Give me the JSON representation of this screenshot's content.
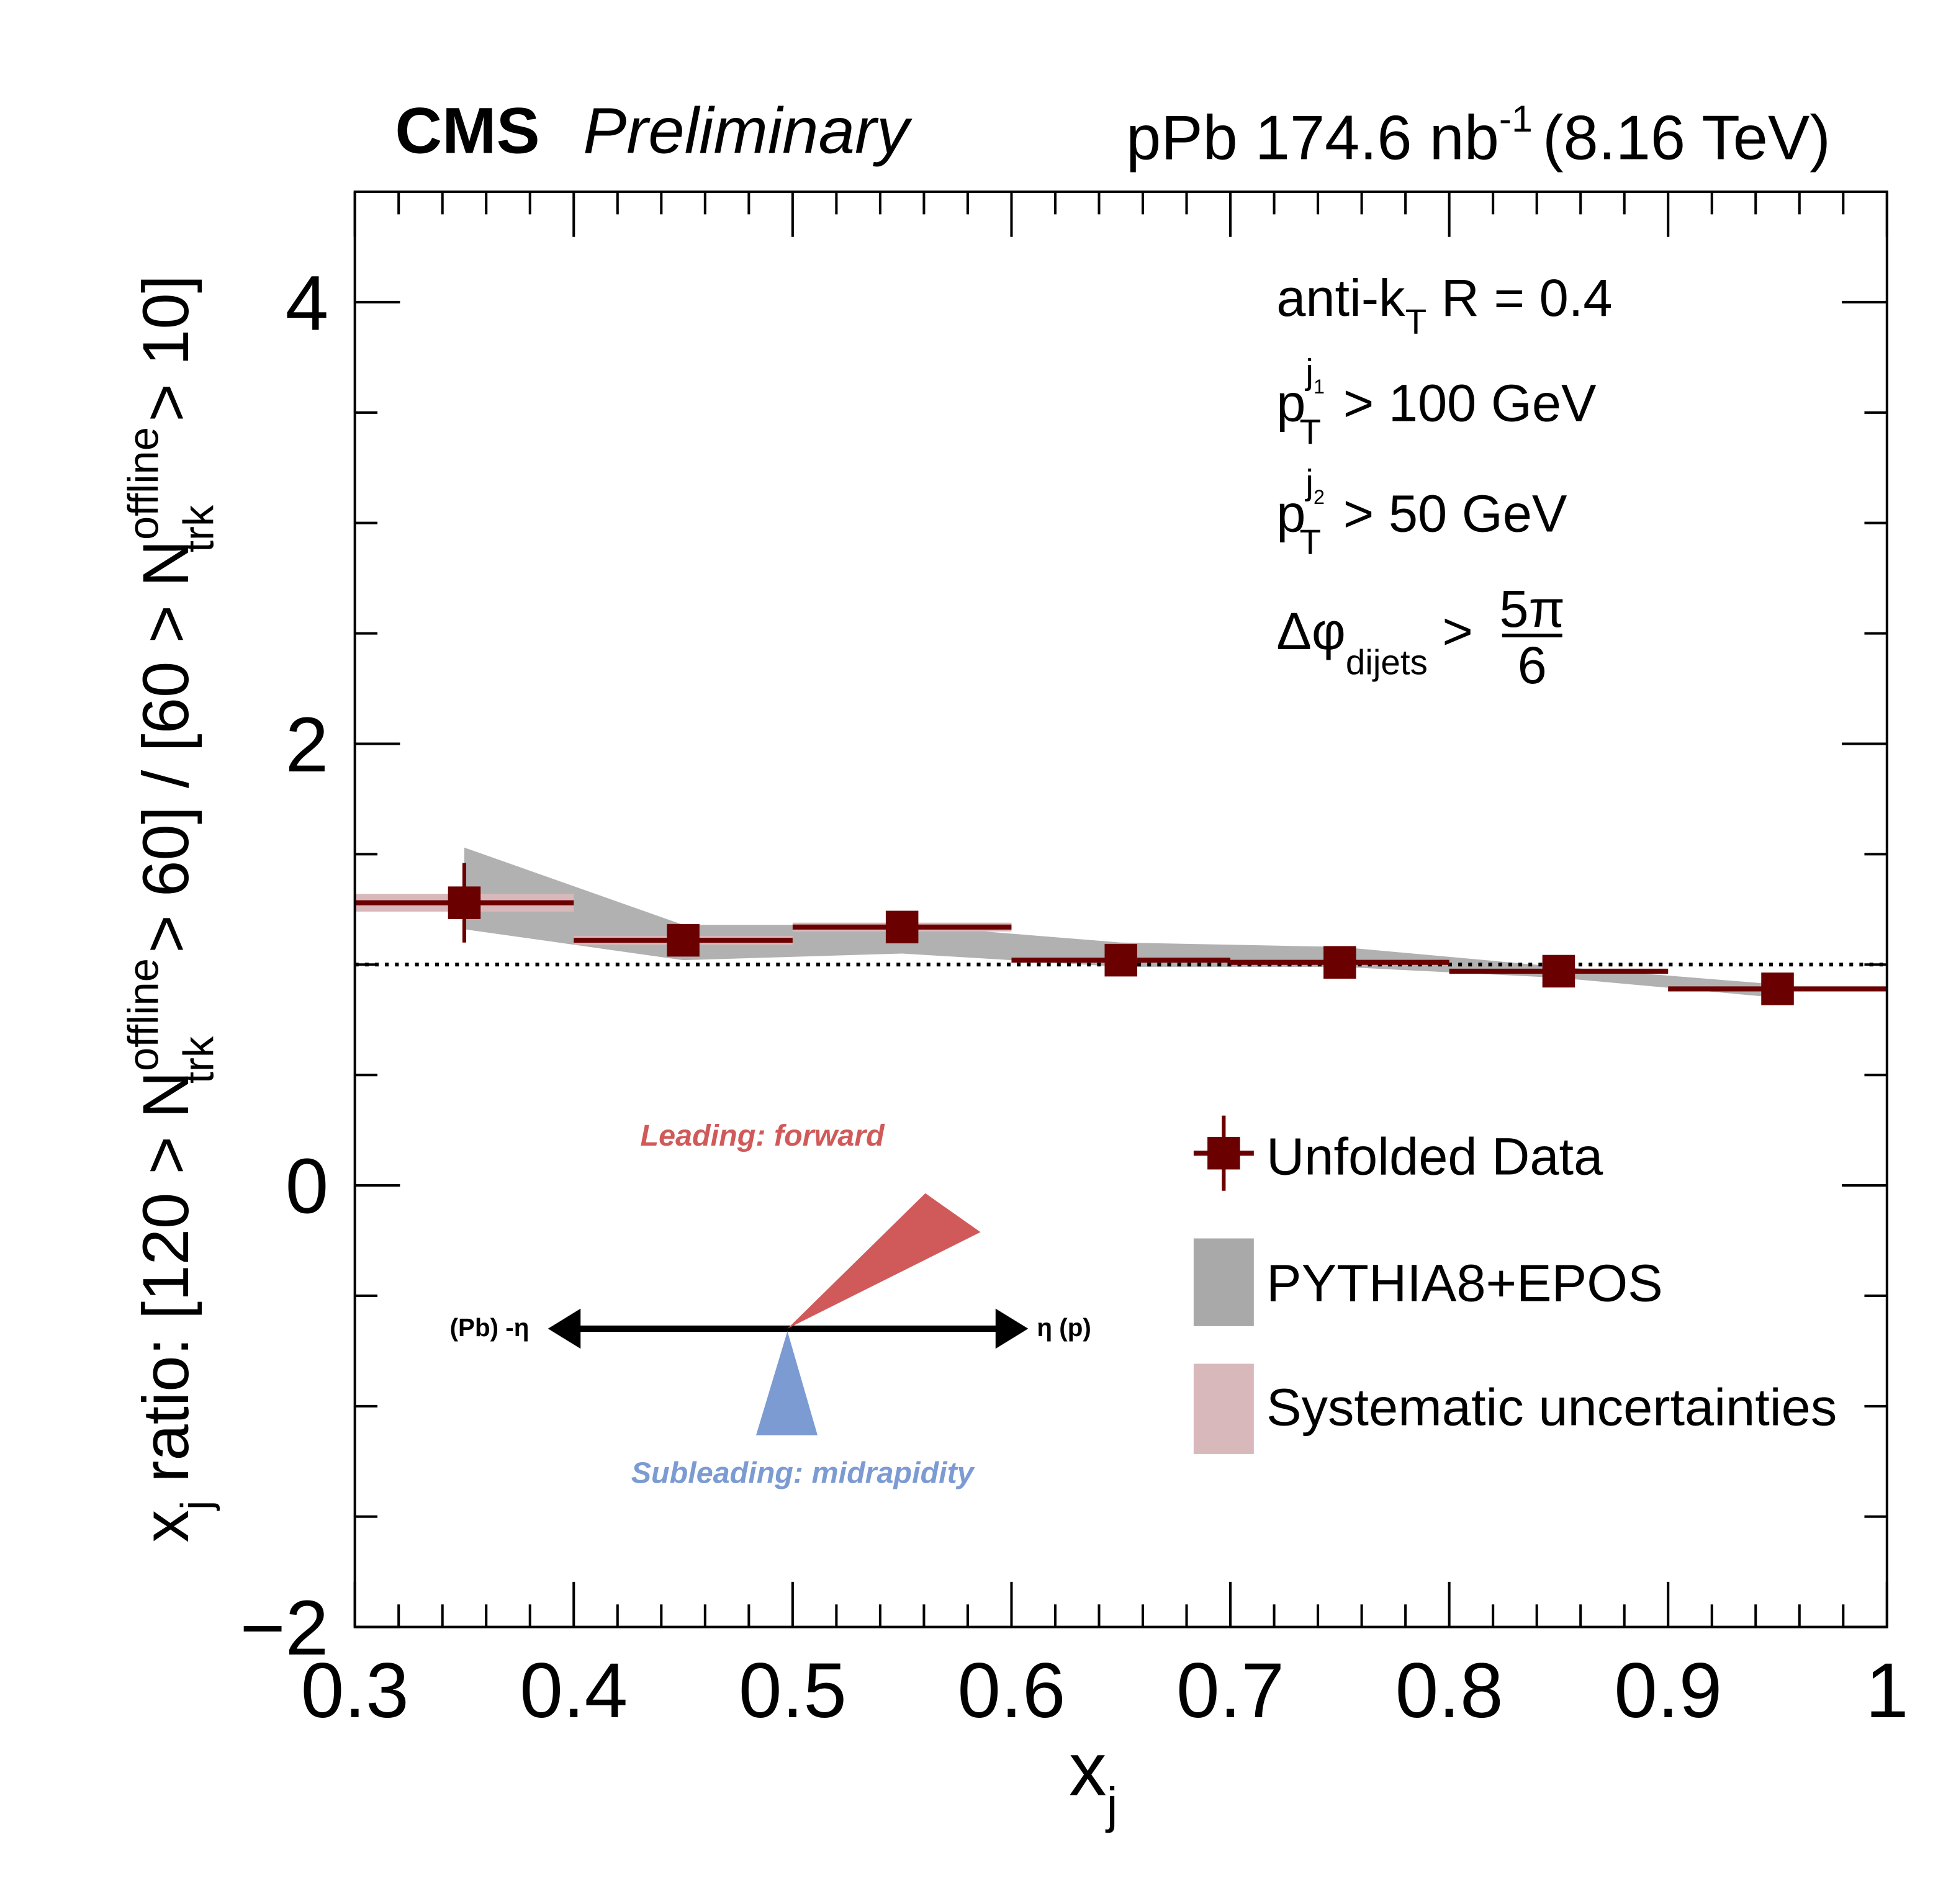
{
  "chart_data": {
    "type": "errorbar",
    "header": {
      "experiment": "CMS",
      "status": "Preliminary",
      "lumi": [
        "pPb 174.6 nb",
        "-1",
        "(8.16 TeV)"
      ]
    },
    "xlabel": [
      "x",
      "j"
    ],
    "ylabel": [
      "x",
      "j",
      " ratio: [120 > N",
      "offline",
      "trk",
      " > 60] / [60 > N",
      "offline",
      "trk",
      " > 10]"
    ],
    "annotations": {
      "algo": [
        "anti-k",
        "T",
        " R = 0.4"
      ],
      "lead": [
        "p",
        "j",
        "1",
        "T",
        " > 100 GeV"
      ],
      "sub": [
        "p",
        "j",
        "2",
        "T",
        " > 50 GeV"
      ],
      "dphi": [
        "Δφ",
        "dijets",
        " > ",
        "5π",
        "6"
      ]
    },
    "diagram": {
      "leading": "Leading: forward",
      "subleading": "Subleading: midrapidity",
      "left": "(Pb) -η",
      "right": "η (p)"
    },
    "x": [
      0.35,
      0.45,
      0.55,
      0.65,
      0.75,
      0.85,
      0.95
    ],
    "xlim": [
      0.3,
      1
    ],
    "xticks": [
      0.3,
      0.4,
      0.5,
      0.6,
      0.7,
      0.8,
      0.9,
      1
    ],
    "xminorticks": [
      0.32,
      0.34,
      0.36,
      0.38,
      0.42,
      0.44,
      0.46,
      0.48,
      0.52,
      0.54,
      0.56,
      0.58,
      0.62,
      0.64,
      0.66,
      0.68,
      0.72,
      0.74,
      0.76,
      0.78,
      0.82,
      0.84,
      0.86,
      0.88,
      0.92,
      0.94,
      0.96,
      0.98
    ],
    "ylim": [
      -2,
      4.5
    ],
    "yticks": [
      {
        "value": -2,
        "label": "−2"
      },
      0,
      2,
      4
    ],
    "yminorticks": [
      -1.5,
      -1,
      -0.5,
      0.5,
      1,
      1.5,
      2.5,
      3,
      3.5
    ],
    "reference_line": 1,
    "series": [
      {
        "name": "Unfolded Data",
        "color": "#6b0000",
        "values": [
          1.28,
          1.11,
          1.17,
          1.02,
          1.01,
          0.97,
          0.89
        ],
        "xerr": [
          0.05,
          0.05,
          0.05,
          0.05,
          0.05,
          0.05,
          0.05
        ],
        "yerr": [
          0.18,
          0.03,
          0.03,
          0.02,
          0.02,
          0.02,
          0.02
        ],
        "syst": [
          0.04,
          0.02,
          0.02,
          0.01,
          0.01,
          0.01,
          0.01
        ],
        "syst_name": "Systematic uncertainties",
        "syst_color": "#d8b8bb"
      },
      {
        "name": "PYTHIA8+EPOS",
        "color": "#a9a9a9",
        "lower": [
          1.16,
          1.02,
          1.05,
          0.99,
          0.99,
          0.94,
          0.85
        ],
        "upper": [
          1.53,
          1.18,
          1.18,
          1.1,
          1.08,
          0.99,
          0.91
        ]
      }
    ]
  }
}
